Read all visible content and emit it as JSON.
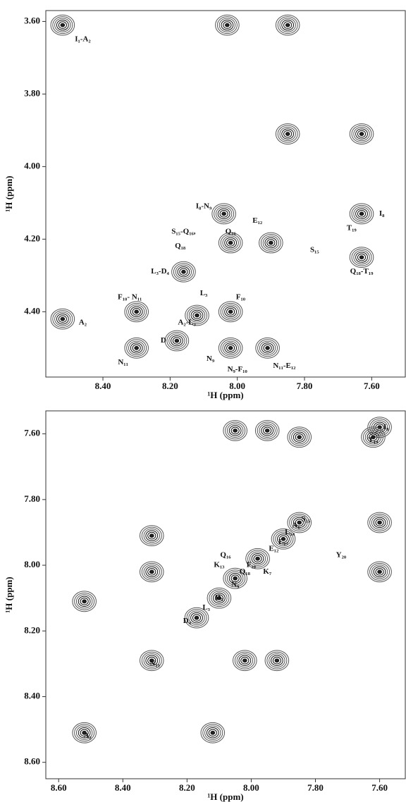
{
  "chart_data": [
    {
      "type": "scatter",
      "x_label": "¹H (ppm)",
      "y_label": "¹H (ppm)",
      "xlim": [
        8.57,
        7.5
      ],
      "ylim": [
        4.58,
        3.57
      ],
      "xticks": [
        {
          "value": 8.4,
          "label": "8.40"
        },
        {
          "value": 8.2,
          "label": "8.20"
        },
        {
          "value": 8.0,
          "label": "8.00"
        },
        {
          "value": 7.8,
          "label": "7.80"
        },
        {
          "value": 7.6,
          "label": "7.60"
        }
      ],
      "yticks": [
        {
          "value": 3.6,
          "label": "3.60"
        },
        {
          "value": 3.8,
          "label": "3.80"
        },
        {
          "value": 4.0,
          "label": "4.00"
        },
        {
          "value": 4.2,
          "label": "4.20"
        },
        {
          "value": 4.4,
          "label": "4.40"
        }
      ],
      "x": [
        8.52,
        8.03,
        7.85,
        7.85,
        7.63,
        8.04,
        7.63,
        8.02,
        7.9,
        7.63,
        8.16,
        8.3,
        8.12,
        8.02,
        8.3,
        8.02,
        7.91,
        8.18,
        8.52
      ],
      "values": [
        3.61,
        3.61,
        3.61,
        3.91,
        3.91,
        4.13,
        4.13,
        4.21,
        4.21,
        4.25,
        4.29,
        4.4,
        4.41,
        4.4,
        4.5,
        4.5,
        4.5,
        4.48,
        4.42
      ],
      "annotations": [
        {
          "text": "I₁-A₂",
          "x": 8.46,
          "y": 3.65
        },
        {
          "text": "A₂",
          "x": 8.46,
          "y": 4.43
        },
        {
          "text": "I₈-N₉",
          "x": 8.1,
          "y": 4.11
        },
        {
          "text": "E₁₂",
          "x": 7.94,
          "y": 4.15
        },
        {
          "text": "I₈",
          "x": 7.57,
          "y": 4.13
        },
        {
          "text": "T₁₉",
          "x": 7.66,
          "y": 4.17
        },
        {
          "text": "S₁₅-Q₁₆,",
          "x": 8.16,
          "y": 4.18
        },
        {
          "text": "Q₁₈",
          "x": 8.17,
          "y": 4.22
        },
        {
          "text": "Q₁₆",
          "x": 8.02,
          "y": 4.18
        },
        {
          "text": "S₁₅",
          "x": 7.77,
          "y": 4.23
        },
        {
          "text": "L₃-D₄",
          "x": 8.23,
          "y": 4.29
        },
        {
          "text": "L₃",
          "x": 8.1,
          "y": 4.35
        },
        {
          "text": "Q₁₈-T₁₉",
          "x": 7.63,
          "y": 4.29
        },
        {
          "text": "F₁₀- N₁₁",
          "x": 8.32,
          "y": 4.36
        },
        {
          "text": "F₁₀",
          "x": 7.99,
          "y": 4.36
        },
        {
          "text": "A₂-L₃",
          "x": 8.15,
          "y": 4.43
        },
        {
          "text": "D",
          "x": 8.22,
          "y": 4.48
        },
        {
          "text": "N₁₁",
          "x": 8.34,
          "y": 4.54
        },
        {
          "text": "N₉",
          "x": 8.08,
          "y": 4.53
        },
        {
          "text": "N₉-F₁₀",
          "x": 8.0,
          "y": 4.56
        },
        {
          "text": "N₁₁-E₁₂",
          "x": 7.86,
          "y": 4.55
        }
      ]
    },
    {
      "type": "scatter",
      "x_label": "¹H (ppm)",
      "y_label": "¹H (ppm)",
      "xlim": [
        8.64,
        7.52
      ],
      "ylim": [
        8.65,
        7.53
      ],
      "xticks": [
        {
          "value": 8.6,
          "label": "8.60"
        },
        {
          "value": 8.4,
          "label": "8.40"
        },
        {
          "value": 8.2,
          "label": "8.20"
        },
        {
          "value": 8.0,
          "label": "8.00"
        },
        {
          "value": 7.8,
          "label": "7.80"
        },
        {
          "value": 7.6,
          "label": "7.60"
        }
      ],
      "yticks": [
        {
          "value": 7.6,
          "label": "7.60"
        },
        {
          "value": 7.8,
          "label": "7.80"
        },
        {
          "value": 8.0,
          "label": "8.00"
        },
        {
          "value": 8.2,
          "label": "8.20"
        },
        {
          "value": 8.4,
          "label": "8.40"
        },
        {
          "value": 8.6,
          "label": "8.60"
        }
      ],
      "x": [
        8.52,
        8.12,
        8.52,
        8.31,
        8.02,
        7.92,
        8.31,
        8.31,
        7.6,
        7.62,
        8.05,
        7.95,
        7.85,
        7.6,
        7.6,
        8.17,
        8.1,
        8.05,
        7.98,
        7.9,
        7.85
      ],
      "values": [
        8.51,
        8.51,
        8.11,
        8.29,
        8.29,
        8.29,
        8.02,
        7.91,
        7.58,
        7.61,
        7.59,
        7.59,
        7.61,
        7.87,
        8.02,
        8.16,
        8.1,
        8.04,
        7.98,
        7.92,
        7.87
      ],
      "annotations": [
        {
          "text": "I₈",
          "x": 7.58,
          "y": 7.58
        },
        {
          "text": "T₁₉",
          "x": 7.62,
          "y": 7.62
        },
        {
          "text": "S₁₅",
          "x": 7.83,
          "y": 7.86
        },
        {
          "text": "A₆",
          "x": 7.86,
          "y": 7.88
        },
        {
          "text": "L₁₄",
          "x": 7.88,
          "y": 7.9
        },
        {
          "text": "L₁₇",
          "x": 7.9,
          "y": 7.93
        },
        {
          "text": "E₁₂",
          "x": 7.93,
          "y": 7.95
        },
        {
          "text": "Y₂₀",
          "x": 7.72,
          "y": 7.97
        },
        {
          "text": "Q₁₆",
          "x": 8.08,
          "y": 7.97
        },
        {
          "text": "K₁₃",
          "x": 8.1,
          "y": 8.0
        },
        {
          "text": "F₁₀",
          "x": 8.0,
          "y": 8.0
        },
        {
          "text": "K₇",
          "x": 7.95,
          "y": 8.02
        },
        {
          "text": "Q₁₈",
          "x": 8.02,
          "y": 8.02
        },
        {
          "text": "N₉",
          "x": 8.05,
          "y": 8.06
        },
        {
          "text": "D₅",
          "x": 8.1,
          "y": 8.1
        },
        {
          "text": "L₃",
          "x": 8.14,
          "y": 8.13
        },
        {
          "text": "D₄",
          "x": 8.2,
          "y": 8.17
        },
        {
          "text": "N₁₁",
          "x": 8.3,
          "y": 8.3
        },
        {
          "text": "A₂",
          "x": 8.51,
          "y": 8.52
        }
      ]
    }
  ]
}
